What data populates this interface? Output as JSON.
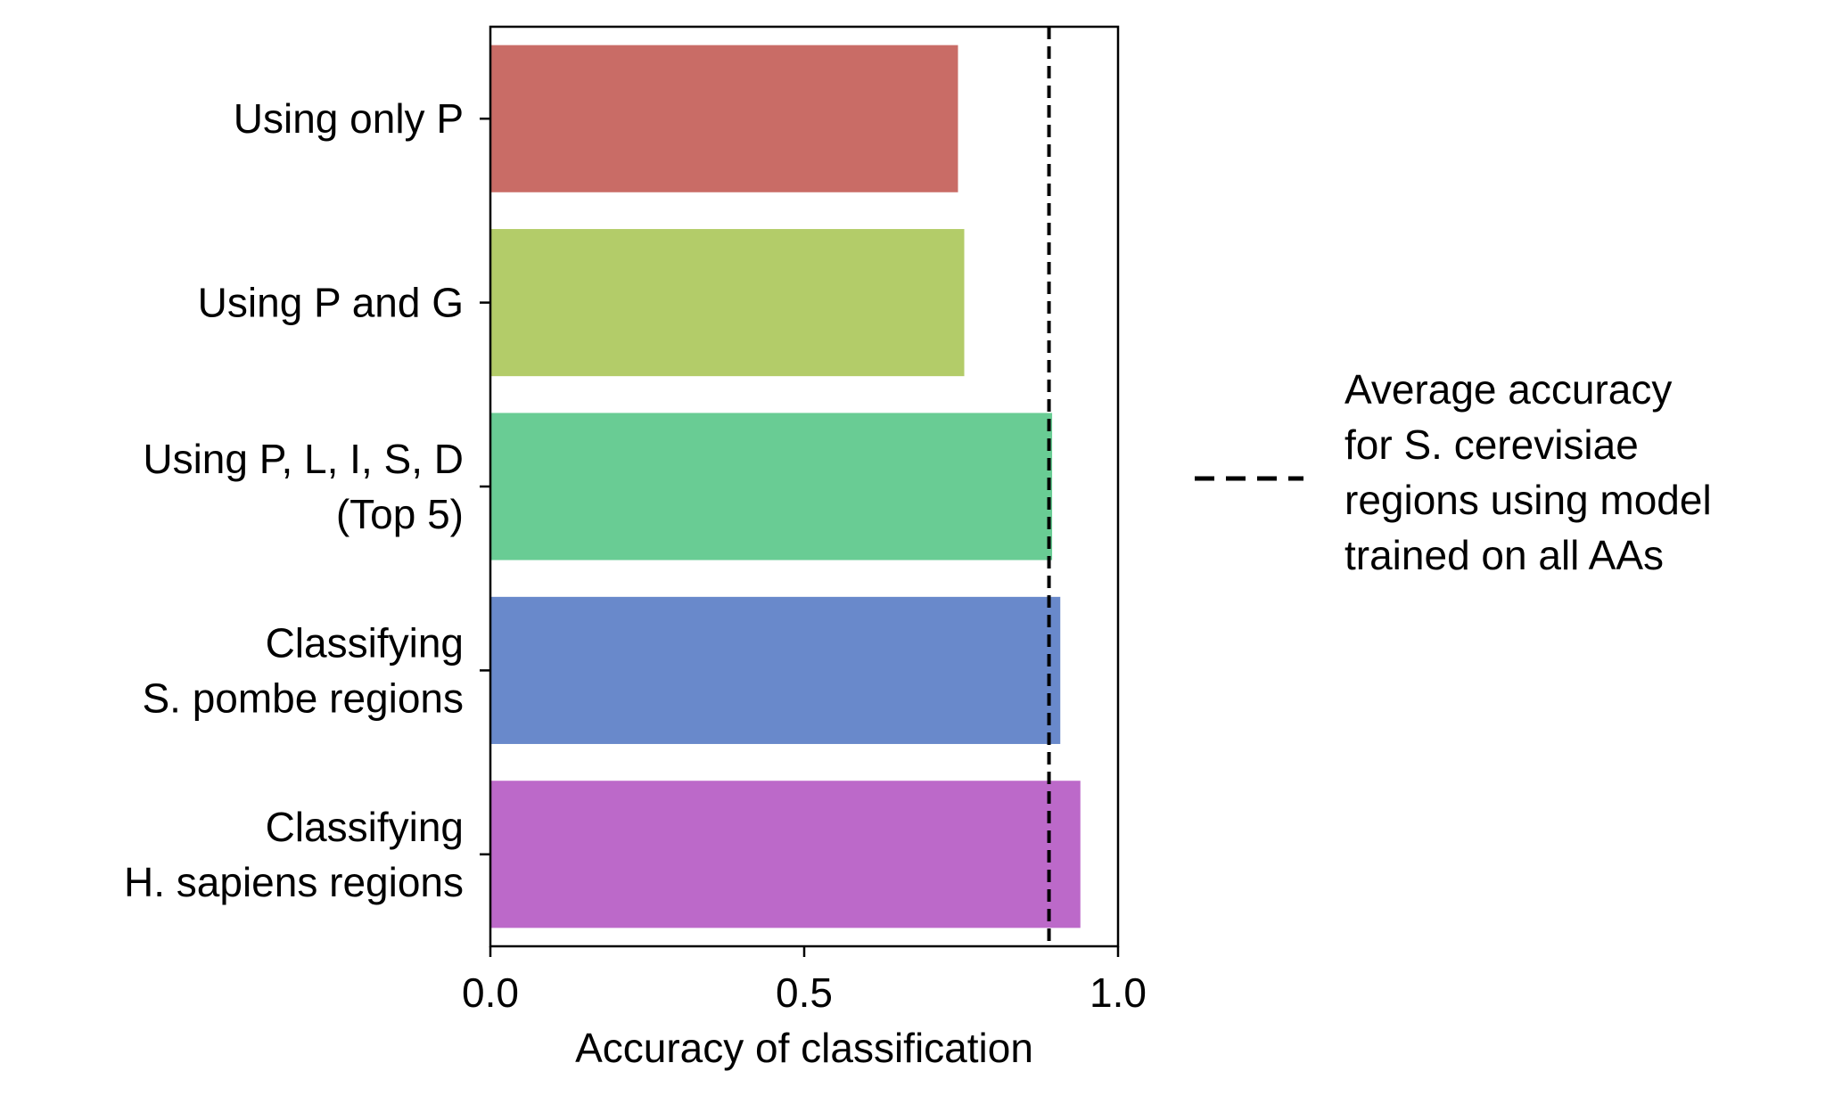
{
  "chart_data": {
    "type": "bar",
    "orientation": "horizontal",
    "categories": [
      [
        "Using only P"
      ],
      [
        "Using P and G"
      ],
      [
        "Using P, L, I, S, D",
        "(Top 5)"
      ],
      [
        "Classifying",
        "S. pombe regions"
      ],
      [
        "Classifying",
        "H. sapiens regions"
      ]
    ],
    "values": [
      0.745,
      0.755,
      0.895,
      0.908,
      0.94
    ],
    "colors": [
      "#c96c66",
      "#b3cc69",
      "#69cc94",
      "#6989cb",
      "#bc69c9"
    ],
    "xlabel": "Accuracy of classification",
    "ylabel": "",
    "xlim": [
      0.0,
      1.0
    ],
    "xticks": [
      0.0,
      0.5,
      1.0
    ],
    "xtick_labels": [
      "0.0",
      "0.5",
      "1.0"
    ],
    "reference_line": {
      "value": 0.89,
      "style": "dashed",
      "color": "#000000",
      "label": [
        "Average accuracy",
        "for S. cerevisiae",
        "regions using model",
        "trained on all AAs"
      ]
    },
    "grid": false,
    "legend_placement": "right"
  }
}
